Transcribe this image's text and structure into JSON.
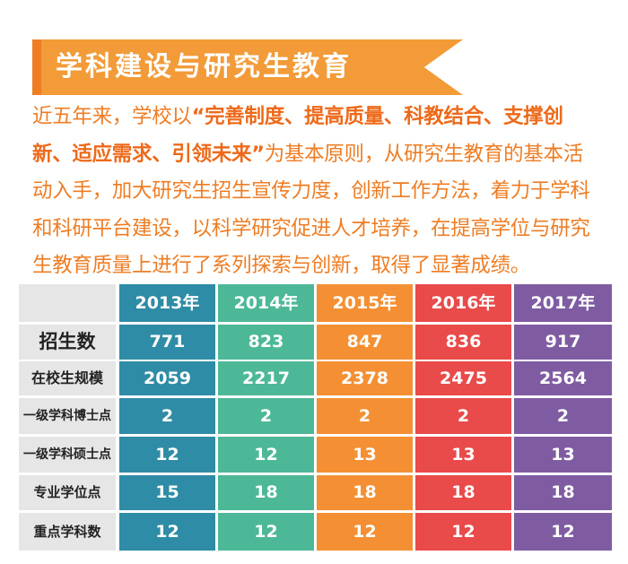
{
  "title": "学科建设与研究生教育",
  "intro": {
    "p1": "近五年来，学校以",
    "highlight": "“完善制度、提高质量、科教结合、支撑创新、适应需求、引领未来”",
    "p2": "为基本原则，从研究生教育的基本活动入手，加大研究生招生宣传力度，创新工作方法，着力于学科和科研平台建设，以科学研究促进人才培养，在提高学位与研究生教育质量上进行了系列探索与创新，取得了显著成绩。"
  },
  "chart_data": {
    "type": "table",
    "columns": [
      "2013年",
      "2014年",
      "2015年",
      "2016年",
      "2017年"
    ],
    "rows": [
      "招生数",
      "在校生规模",
      "一级学科博士点",
      "一级学科硕士点",
      "专业学位点",
      "重点学科数"
    ],
    "series": [
      {
        "name": "2013年",
        "values": [
          771,
          2059,
          2,
          12,
          15,
          12
        ]
      },
      {
        "name": "2014年",
        "values": [
          823,
          2217,
          2,
          12,
          18,
          12
        ]
      },
      {
        "name": "2015年",
        "values": [
          847,
          2378,
          2,
          13,
          18,
          12
        ]
      },
      {
        "name": "2016年",
        "values": [
          836,
          2475,
          2,
          13,
          18,
          12
        ]
      },
      {
        "name": "2017年",
        "values": [
          917,
          2564,
          2,
          13,
          18,
          12
        ]
      }
    ]
  },
  "colors": {
    "col_2013": "#2F8CA6",
    "col_2014": "#4DB897",
    "col_2015": "#F49033",
    "col_2016": "#E94A4A",
    "col_2017": "#7F5CA2",
    "label_bg": "#E6E6E6"
  }
}
